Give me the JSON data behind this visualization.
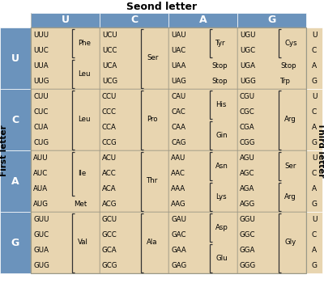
{
  "title": "Seond letter",
  "first_letter_label": "First letter",
  "third_letter_label": "Third letter",
  "second_letters": [
    "U",
    "C",
    "A",
    "G"
  ],
  "first_letters": [
    "U",
    "C",
    "A",
    "G"
  ],
  "third_letters": [
    "U",
    "C",
    "A",
    "G"
  ],
  "header_color": "#6b93bc",
  "cell_color": "#e8d5b0",
  "codon_data": [
    {
      "first": "U",
      "columns": [
        {
          "codons": [
            "UUU",
            "UUC",
            "UUA",
            "UUG"
          ],
          "bracket_groups": [
            {
              "indices": [
                0,
                1
              ],
              "label": "Phe"
            },
            {
              "indices": [
                2,
                3
              ],
              "label": "Leu"
            }
          ]
        },
        {
          "codons": [
            "UCU",
            "UCC",
            "UCA",
            "UCG"
          ],
          "bracket_groups": [
            {
              "indices": [
                0,
                1,
                2,
                3
              ],
              "label": "Ser"
            }
          ]
        },
        {
          "codons": [
            "UAU",
            "UAC",
            "UAA",
            "UAG"
          ],
          "bracket_groups": [
            {
              "indices": [
                0,
                1
              ],
              "label": "Tyr"
            },
            {
              "indices": [
                2
              ],
              "label": "Stop",
              "no_bracket": true
            },
            {
              "indices": [
                3
              ],
              "label": "Stop",
              "no_bracket": true
            }
          ]
        },
        {
          "codons": [
            "UGU",
            "UGC",
            "UGA",
            "UGG"
          ],
          "bracket_groups": [
            {
              "indices": [
                0,
                1
              ],
              "label": "Cys"
            },
            {
              "indices": [
                2
              ],
              "label": "Stop",
              "no_bracket": true
            },
            {
              "indices": [
                3
              ],
              "label": "Trp",
              "no_bracket": true
            }
          ]
        }
      ]
    },
    {
      "first": "C",
      "columns": [
        {
          "codons": [
            "CUU",
            "CUC",
            "CUA",
            "CUG"
          ],
          "bracket_groups": [
            {
              "indices": [
                0,
                1,
                2,
                3
              ],
              "label": "Leu"
            }
          ]
        },
        {
          "codons": [
            "CCU",
            "CCC",
            "CCA",
            "CCG"
          ],
          "bracket_groups": [
            {
              "indices": [
                0,
                1,
                2,
                3
              ],
              "label": "Pro"
            }
          ]
        },
        {
          "codons": [
            "CAU",
            "CAC",
            "CAA",
            "CAG"
          ],
          "bracket_groups": [
            {
              "indices": [
                0,
                1
              ],
              "label": "His"
            },
            {
              "indices": [
                2,
                3
              ],
              "label": "Gin"
            }
          ]
        },
        {
          "codons": [
            "CGU",
            "CGC",
            "CGA",
            "CGG"
          ],
          "bracket_groups": [
            {
              "indices": [
                0,
                1,
                2,
                3
              ],
              "label": "Arg"
            }
          ]
        }
      ]
    },
    {
      "first": "A",
      "columns": [
        {
          "codons": [
            "AUU",
            "AUC",
            "AUA",
            "AUG"
          ],
          "bracket_groups": [
            {
              "indices": [
                0,
                1,
                2
              ],
              "label": "Ile"
            },
            {
              "indices": [
                3
              ],
              "label": "Met",
              "no_bracket": true
            }
          ]
        },
        {
          "codons": [
            "ACU",
            "ACC",
            "ACA",
            "ACG"
          ],
          "bracket_groups": [
            {
              "indices": [
                0,
                1,
                2,
                3
              ],
              "label": "Thr"
            }
          ]
        },
        {
          "codons": [
            "AAU",
            "AAC",
            "AAA",
            "AAG"
          ],
          "bracket_groups": [
            {
              "indices": [
                0,
                1
              ],
              "label": "Asn"
            },
            {
              "indices": [
                2,
                3
              ],
              "label": "Lys"
            }
          ]
        },
        {
          "codons": [
            "AGU",
            "AGC",
            "AGA",
            "AGG"
          ],
          "bracket_groups": [
            {
              "indices": [
                0,
                1
              ],
              "label": "Ser"
            },
            {
              "indices": [
                2,
                3
              ],
              "label": "Arg"
            }
          ]
        }
      ]
    },
    {
      "first": "G",
      "columns": [
        {
          "codons": [
            "GUU",
            "GUC",
            "GUA",
            "GUG"
          ],
          "bracket_groups": [
            {
              "indices": [
                0,
                1,
                2,
                3
              ],
              "label": "Val"
            }
          ]
        },
        {
          "codons": [
            "GCU",
            "GCC",
            "GCA",
            "GCG"
          ],
          "bracket_groups": [
            {
              "indices": [
                0,
                1,
                2,
                3
              ],
              "label": "Ala"
            }
          ]
        },
        {
          "codons": [
            "GAU",
            "GAC",
            "GAA",
            "GAG"
          ],
          "bracket_groups": [
            {
              "indices": [
                0,
                1
              ],
              "label": "Asp"
            },
            {
              "indices": [
                2,
                3
              ],
              "label": "Glu"
            }
          ]
        },
        {
          "codons": [
            "GGU",
            "GGC",
            "GGA",
            "GGG"
          ],
          "bracket_groups": [
            {
              "indices": [
                0,
                1,
                2,
                3
              ],
              "label": "Gly"
            }
          ]
        }
      ]
    }
  ]
}
